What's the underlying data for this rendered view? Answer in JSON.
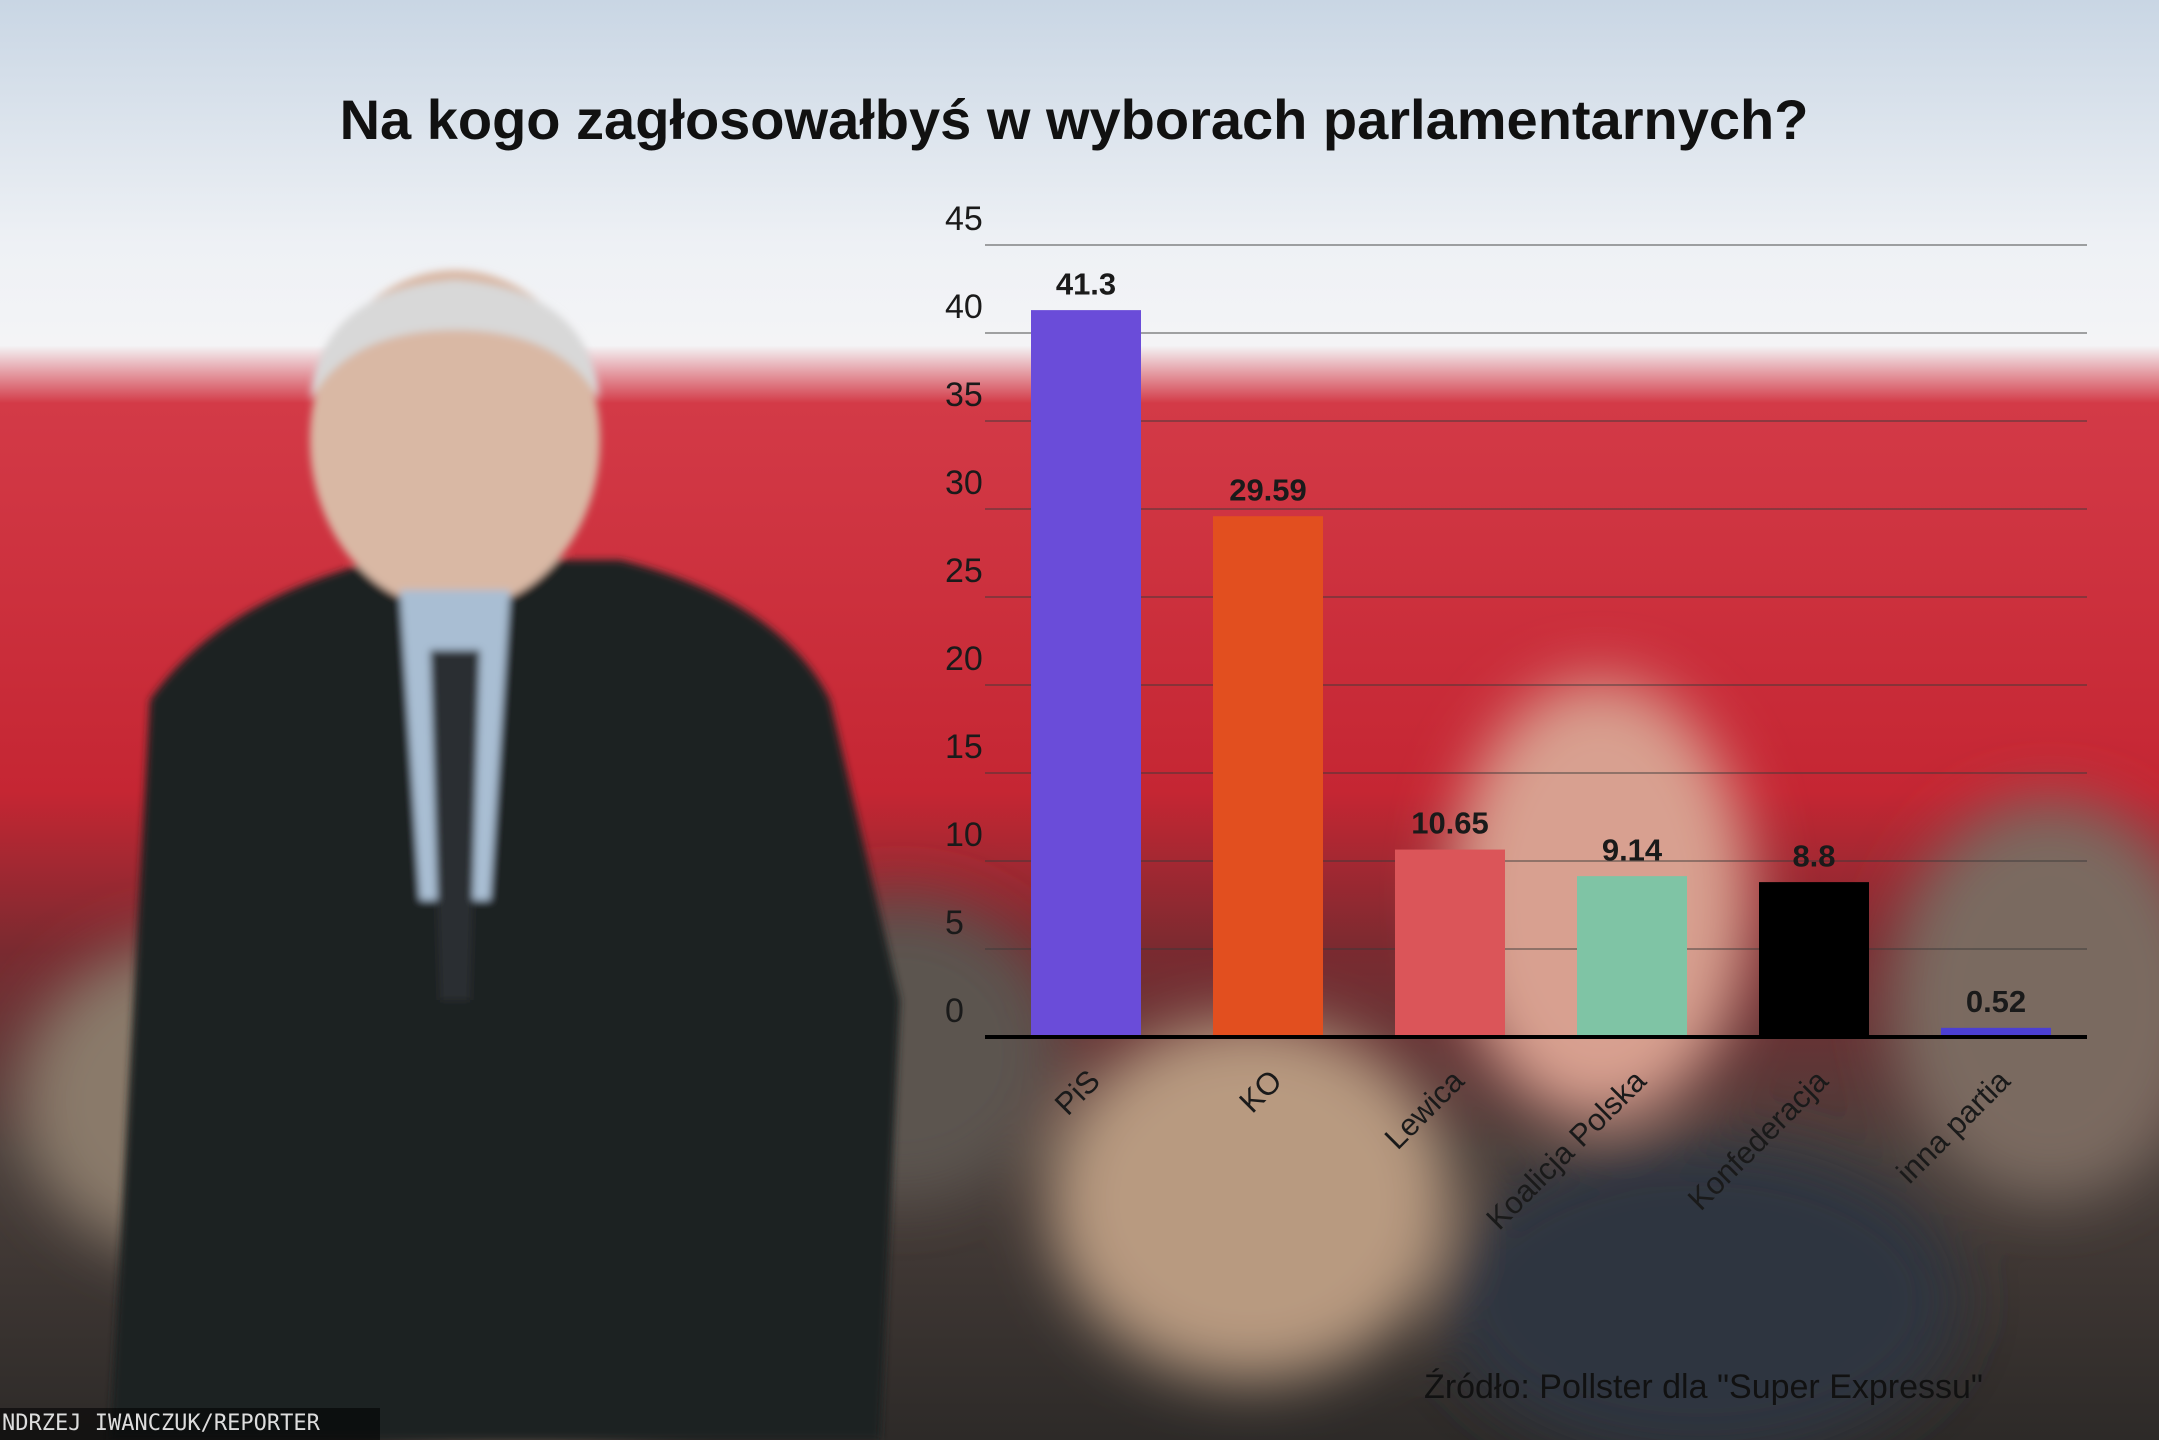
{
  "chart_data": {
    "type": "bar",
    "title": "Na kogo zagłosowałbyś w wyborach parlamentarnych?",
    "categories": [
      "PiS",
      "KO",
      "Lewica",
      "Koalicja Polska",
      "Konfederacja",
      "inna partia"
    ],
    "values": [
      41.3,
      29.59,
      10.65,
      9.14,
      8.8,
      0.52
    ],
    "colors": [
      "#6a4cd9",
      "#e24f1f",
      "#db5559",
      "#7fc4a5",
      "#000000",
      "#4b3fd2"
    ],
    "ylim": [
      0,
      45
    ],
    "yticks": [
      0,
      5,
      10,
      15,
      20,
      25,
      30,
      35,
      40,
      45
    ],
    "grid": true,
    "source": "Źródło: Pollster dla \"Super Expressu\"",
    "photo_credit": "NDRZEJ IWANCZUK/REPORTER"
  }
}
